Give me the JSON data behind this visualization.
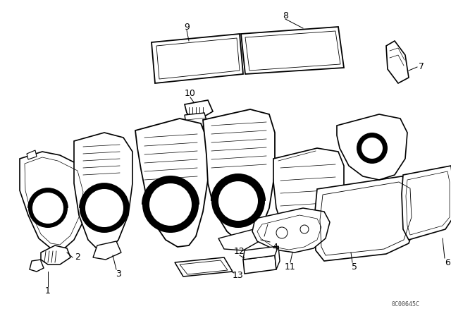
{
  "bg_color": "#ffffff",
  "line_color": "#000000",
  "fig_width": 6.4,
  "fig_height": 4.48,
  "dpi": 100,
  "watermark": "0C00645C",
  "title_border_color": "#cccccc"
}
